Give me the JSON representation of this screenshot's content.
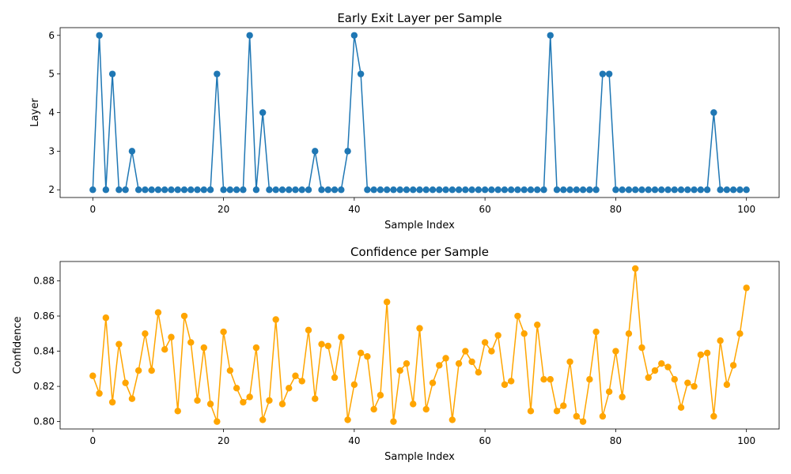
{
  "chart_data": [
    {
      "type": "line",
      "title": "Early Exit Layer per Sample",
      "xlabel": "Sample Index",
      "ylabel": "Layer",
      "color": "#1f77b4",
      "marker": "circle",
      "xlim": [
        -5,
        105
      ],
      "ylim": [
        1.8,
        6.2
      ],
      "xticks": [
        0,
        20,
        40,
        60,
        80,
        100
      ],
      "yticks": [
        2,
        3,
        4,
        5,
        6
      ],
      "ytick_decimals": 0,
      "grid": false,
      "legend": "none",
      "x_start": 0,
      "values": [
        2,
        6,
        2,
        5,
        2,
        2,
        3,
        2,
        2,
        2,
        2,
        2,
        2,
        2,
        2,
        2,
        2,
        2,
        2,
        5,
        2,
        2,
        2,
        2,
        6,
        2,
        4,
        2,
        2,
        2,
        2,
        2,
        2,
        2,
        3,
        2,
        2,
        2,
        2,
        3,
        6,
        5,
        2,
        2,
        2,
        2,
        2,
        2,
        2,
        2,
        2,
        2,
        2,
        2,
        2,
        2,
        2,
        2,
        2,
        2,
        2,
        2,
        2,
        2,
        2,
        2,
        2,
        2,
        2,
        2,
        6,
        2,
        2,
        2,
        2,
        2,
        2,
        2,
        5,
        5,
        2,
        2,
        2,
        2,
        2,
        2,
        2,
        2,
        2,
        2,
        2,
        2,
        2,
        2,
        2,
        4,
        2,
        2,
        2,
        2,
        2
      ]
    },
    {
      "type": "line",
      "title": "Confidence per Sample",
      "xlabel": "Sample Index",
      "ylabel": "Confidence",
      "color": "#ffa500",
      "marker": "circle",
      "xlim": [
        -5,
        105
      ],
      "ylim": [
        0.7958,
        0.891
      ],
      "xticks": [
        0,
        20,
        40,
        60,
        80,
        100
      ],
      "yticks": [
        0.8,
        0.82,
        0.84,
        0.86,
        0.88
      ],
      "ytick_decimals": 2,
      "grid": false,
      "legend": "none",
      "x_start": 0,
      "values": [
        0.826,
        0.816,
        0.859,
        0.811,
        0.844,
        0.822,
        0.813,
        0.829,
        0.85,
        0.829,
        0.862,
        0.841,
        0.848,
        0.806,
        0.86,
        0.845,
        0.812,
        0.842,
        0.81,
        0.8,
        0.851,
        0.829,
        0.819,
        0.811,
        0.814,
        0.842,
        0.801,
        0.812,
        0.858,
        0.81,
        0.819,
        0.826,
        0.823,
        0.852,
        0.813,
        0.844,
        0.843,
        0.825,
        0.848,
        0.801,
        0.821,
        0.839,
        0.837,
        0.807,
        0.815,
        0.868,
        0.8,
        0.829,
        0.833,
        0.81,
        0.853,
        0.807,
        0.822,
        0.832,
        0.836,
        0.801,
        0.833,
        0.84,
        0.834,
        0.828,
        0.845,
        0.84,
        0.849,
        0.821,
        0.823,
        0.86,
        0.85,
        0.806,
        0.855,
        0.824,
        0.824,
        0.806,
        0.809,
        0.834,
        0.803,
        0.8,
        0.824,
        0.851,
        0.803,
        0.817,
        0.84,
        0.814,
        0.85,
        0.887,
        0.842,
        0.825,
        0.829,
        0.833,
        0.831,
        0.824,
        0.808,
        0.822,
        0.82,
        0.838,
        0.839,
        0.803,
        0.846,
        0.821,
        0.832,
        0.85,
        0.876
      ]
    }
  ]
}
